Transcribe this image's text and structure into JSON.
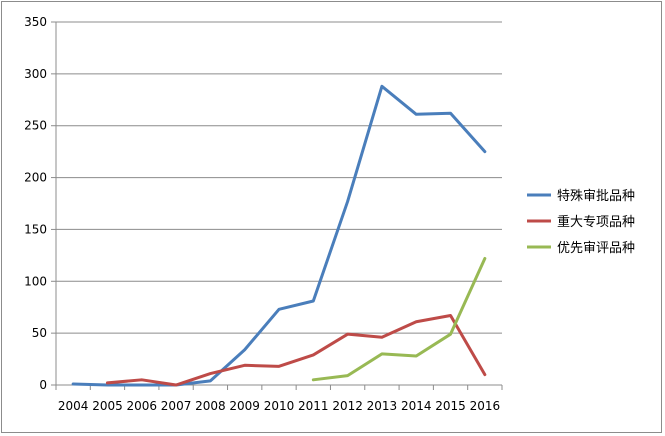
{
  "chart_data": {
    "type": "line",
    "title": "",
    "xlabel": "",
    "ylabel": "",
    "ylim": [
      0,
      350
    ],
    "yticks": [
      0,
      50,
      100,
      150,
      200,
      250,
      300,
      350
    ],
    "grid": "horizontal",
    "legend_position": "right",
    "categories": [
      "2004",
      "2005",
      "2006",
      "2007",
      "2008",
      "2009",
      "2010",
      "2011",
      "2012",
      "2013",
      "2014",
      "2015",
      "2016"
    ],
    "series": [
      {
        "name": "特殊审批品种",
        "color": "#4a7ebb",
        "values": [
          1,
          0,
          0,
          0,
          4,
          34,
          73,
          81,
          177,
          288,
          261,
          262,
          225
        ]
      },
      {
        "name": "重大专项品种",
        "color": "#be4b48",
        "values": [
          null,
          2,
          5,
          0,
          11,
          19,
          18,
          29,
          49,
          46,
          61,
          67,
          10
        ]
      },
      {
        "name": "优先审评品种",
        "color": "#98b954",
        "values": [
          null,
          null,
          null,
          null,
          null,
          null,
          null,
          5,
          9,
          30,
          28,
          49,
          122
        ]
      }
    ]
  }
}
